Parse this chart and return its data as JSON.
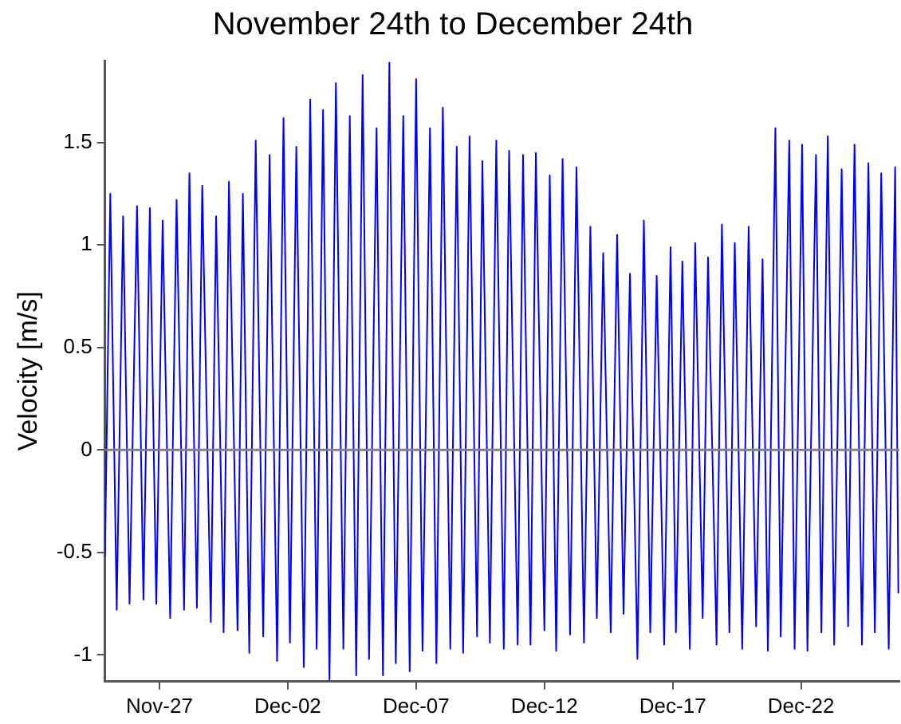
{
  "chart_data": {
    "type": "line",
    "title": "November 24th to December 24th",
    "ylabel": "Velocity [m/s]",
    "xlim": [
      "--11-24T21:00",
      "--12-25T20:00"
    ],
    "xticks": [
      {
        "value": "--11-27",
        "label": "Nov-27"
      },
      {
        "value": "--12-02",
        "label": "Dec-02"
      },
      {
        "value": "--12-07",
        "label": "Dec-07"
      },
      {
        "value": "--12-12",
        "label": "Dec-12"
      },
      {
        "value": "--12-17",
        "label": "Dec-17"
      },
      {
        "value": "--12-22",
        "label": "Dec-22"
      }
    ],
    "ylim": [
      -1.13,
      1.9
    ],
    "yticks": [
      -1,
      -0.5,
      0,
      0.5,
      1,
      1.5
    ],
    "grid": false,
    "legend": false,
    "marker": "none",
    "line_style": "solid",
    "ref_lines": [
      {
        "axis": "y",
        "value": 0,
        "color": "#808080"
      }
    ],
    "series": [
      {
        "color": "#0000ff",
        "x": [
          "--11-24T21:00",
          "--11-25T02:00",
          "--11-25T08:00",
          "--11-25T14:00",
          "--11-25T20:00",
          "--11-26T03:00",
          "--11-26T09:00",
          "--11-26T15:00",
          "--11-26T21:00",
          "--11-27T03:00",
          "--11-27T10:00",
          "--11-27T16:00",
          "--11-27T23:00",
          "--11-28T04:00",
          "--11-28T11:00",
          "--11-28T16:00",
          "--11-29T00:00",
          "--11-29T05:00",
          "--11-29T12:00",
          "--11-29T17:00",
          "--11-30T01:00",
          "--11-30T06:00",
          "--11-30T12:00",
          "--11-30T18:00",
          "--12-01T01:00",
          "--12-01T07:00",
          "--12-01T14:00",
          "--12-01T20:00",
          "--12-02T02:00",
          "--12-02T08:00",
          "--12-02T15:00",
          "--12-02T21:00",
          "--12-03T03:00",
          "--12-03T09:00",
          "--12-03T15:00",
          "--12-03T21:00",
          "--12-04T04:00",
          "--12-04T10:00",
          "--12-04T16:00",
          "--12-04T22:00",
          "--12-05T04:00",
          "--12-05T11:00",
          "--12-05T17:00",
          "--12-05T23:00",
          "--12-06T05:00",
          "--12-06T12:00",
          "--12-06T18:00",
          "--12-07T00:00",
          "--12-07T06:00",
          "--12-07T13:00",
          "--12-07T19:00",
          "--12-08T01:00",
          "--12-08T08:00",
          "--12-08T14:00",
          "--12-08T20:00",
          "--12-09T02:00",
          "--12-09T09:00",
          "--12-09T14:00",
          "--12-09T21:00",
          "--12-10T03:00",
          "--12-10T10:00",
          "--12-10T15:00",
          "--12-10T23:00",
          "--12-11T04:00",
          "--12-11T11:00",
          "--12-11T16:00",
          "--12-12T00:00",
          "--12-12T05:00",
          "--12-12T11:00",
          "--12-12T17:00",
          "--12-13T00:00",
          "--12-13T06:00",
          "--12-13T13:00",
          "--12-13T19:00",
          "--12-14T01:00",
          "--12-14T07:00",
          "--12-14T14:00",
          "--12-14T20:00",
          "--12-15T02:00",
          "--12-15T08:00",
          "--12-15T15:00",
          "--12-15T21:00",
          "--12-16T03:00",
          "--12-16T09:00",
          "--12-16T16:00",
          "--12-16T22:00",
          "--12-17T03:00",
          "--12-17T09:00",
          "--12-17T16:00",
          "--12-17T21:00",
          "--12-18T04:00",
          "--12-18T09:00",
          "--12-18T17:00",
          "--12-18T22:00",
          "--12-19T05:00",
          "--12-19T10:00",
          "--12-19T17:00",
          "--12-19T23:00",
          "--12-20T06:00",
          "--12-20T12:00",
          "--12-20T17:00",
          "--12-21T00:00",
          "--12-21T05:00",
          "--12-21T13:00",
          "--12-21T18:00",
          "--12-22T01:00",
          "--12-22T06:00",
          "--12-22T14:00",
          "--12-22T19:00",
          "--12-23T01:00",
          "--12-23T07:00",
          "--12-23T14:00",
          "--12-23T20:00",
          "--12-24T02:00",
          "--12-24T09:00",
          "--12-24T15:00",
          "--12-24T21:00",
          "--12-25T03:00",
          "--12-25T10:00",
          "--12-25T16:00",
          "--12-25T19:00"
        ],
        "values": [
          -0.52,
          1.25,
          -0.78,
          1.14,
          -0.75,
          1.19,
          -0.73,
          1.18,
          -0.75,
          1.12,
          -0.82,
          1.22,
          -0.78,
          1.35,
          -0.77,
          1.29,
          -0.84,
          1.14,
          -0.89,
          1.31,
          -0.88,
          1.25,
          -0.99,
          1.51,
          -0.91,
          1.44,
          -1.03,
          1.62,
          -0.94,
          1.48,
          -1.06,
          1.71,
          -0.97,
          1.66,
          -1.12,
          1.79,
          -0.97,
          1.63,
          -1.1,
          1.83,
          -1.02,
          1.57,
          -1.1,
          1.89,
          -1.04,
          1.63,
          -1.08,
          1.81,
          -0.98,
          1.57,
          -1.04,
          1.67,
          -0.97,
          1.48,
          -0.99,
          1.53,
          -0.91,
          1.41,
          -0.94,
          1.51,
          -0.97,
          1.46,
          -0.95,
          1.44,
          -0.95,
          1.45,
          -0.88,
          1.34,
          -0.98,
          1.42,
          -0.9,
          1.38,
          -0.94,
          1.09,
          -0.82,
          0.96,
          -0.89,
          1.05,
          -0.8,
          0.86,
          -1.02,
          1.12,
          -0.89,
          0.85,
          -0.95,
          0.99,
          -0.89,
          0.92,
          -0.97,
          1.01,
          -0.82,
          0.94,
          -0.95,
          1.1,
          -0.89,
          1.01,
          -0.97,
          1.09,
          -0.86,
          0.93,
          -0.98,
          1.57,
          -0.91,
          1.51,
          -0.97,
          1.49,
          -0.98,
          1.44,
          -0.89,
          1.53,
          -0.95,
          1.37,
          -0.86,
          1.49,
          -0.95,
          1.4,
          -0.89,
          1.35,
          -0.97,
          1.38,
          -0.7
        ]
      }
    ]
  }
}
